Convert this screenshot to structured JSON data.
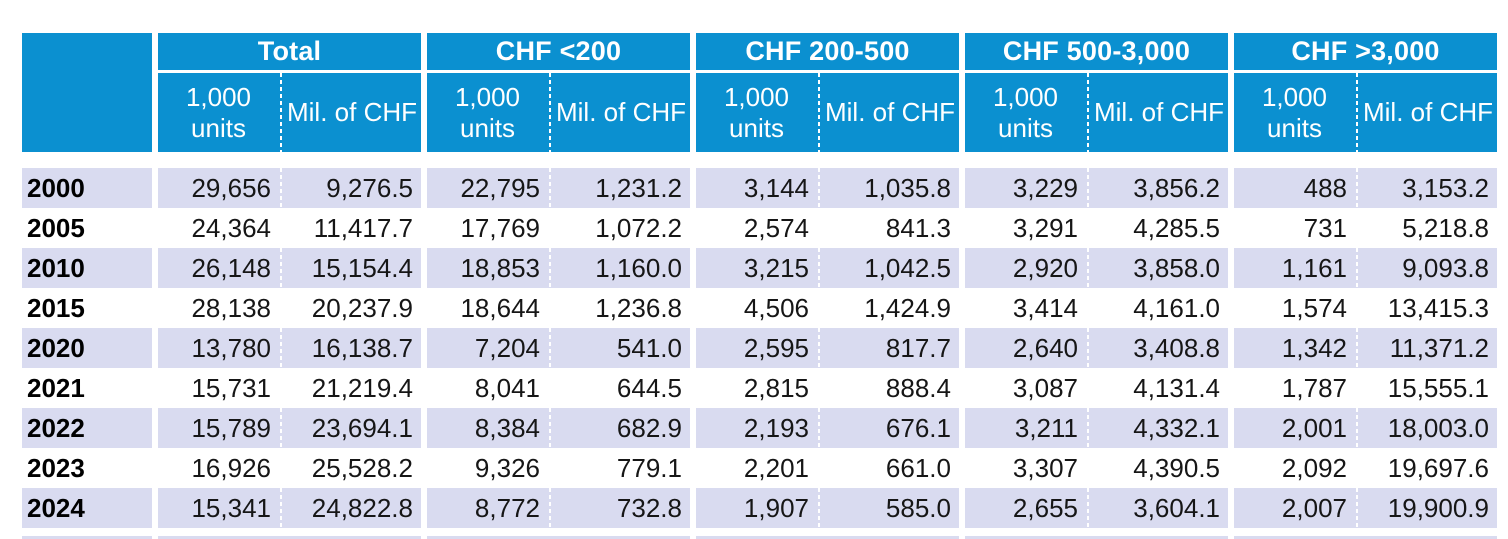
{
  "colors": {
    "header_blue": "#0b90d0",
    "row_stripe": "#d9dbf0",
    "text": "#161616"
  },
  "sub_headers": {
    "units_line1": "1,000",
    "units_line2": "units",
    "value": "Mil. of CHF"
  },
  "chart_data": {
    "type": "table",
    "column_groups": [
      "Total",
      "CHF <200",
      "CHF 200-500",
      "CHF 500-3,000",
      "CHF >3,000"
    ],
    "sub_columns": [
      "1,000 units",
      "Mil. of CHF"
    ],
    "row_labels": [
      "2000",
      "2005",
      "2010",
      "2015",
      "2020",
      "2021",
      "2022",
      "2023",
      "2024"
    ],
    "rows": [
      [
        29656,
        9276.5,
        22795,
        1231.2,
        3144,
        1035.8,
        3229,
        3856.2,
        488,
        3153.2
      ],
      [
        24364,
        11417.7,
        17769,
        1072.2,
        2574,
        841.3,
        3291,
        4285.5,
        731,
        5218.8
      ],
      [
        26148,
        15154.4,
        18853,
        1160.0,
        3215,
        1042.5,
        2920,
        3858.0,
        1161,
        9093.8
      ],
      [
        28138,
        20237.9,
        18644,
        1236.8,
        4506,
        1424.9,
        3414,
        4161.0,
        1574,
        13415.3
      ],
      [
        13780,
        16138.7,
        7204,
        541.0,
        2595,
        817.7,
        2640,
        3408.8,
        1342,
        11371.2
      ],
      [
        15731,
        21219.4,
        8041,
        644.5,
        2815,
        888.4,
        3087,
        4131.4,
        1787,
        15555.1
      ],
      [
        15789,
        23694.1,
        8384,
        682.9,
        2193,
        676.1,
        3211,
        4332.1,
        2001,
        18003.0
      ],
      [
        16926,
        25528.2,
        9326,
        779.1,
        2201,
        661.0,
        3307,
        4390.5,
        2092,
        19697.6
      ],
      [
        15341,
        24822.8,
        8772,
        732.8,
        1907,
        585.0,
        2655,
        3604.1,
        2007,
        19900.9
      ]
    ]
  }
}
